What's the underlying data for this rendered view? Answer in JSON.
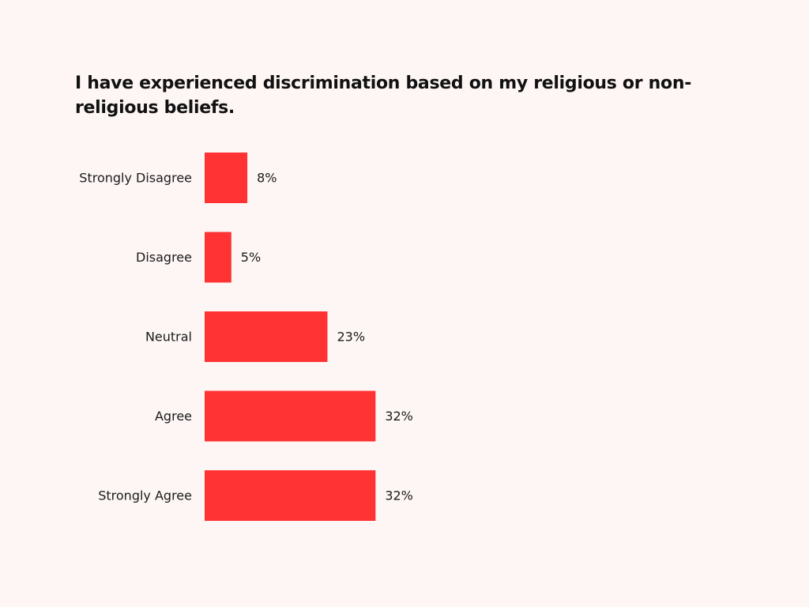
{
  "chart_data": {
    "type": "bar",
    "orientation": "horizontal",
    "title": "I have experienced discrimination based on my religious or non-religious beliefs.",
    "categories": [
      "Strongly Disagree",
      "Disagree",
      "Neutral",
      "Agree",
      "Strongly Agree"
    ],
    "values": [
      8,
      5,
      23,
      32,
      32
    ],
    "value_labels": [
      "8%",
      "5%",
      "23%",
      "32%",
      "32%"
    ],
    "unit": "%",
    "bar_color": "#ff3333",
    "grid": false,
    "legend": "none",
    "xlim": [
      0,
      100
    ]
  }
}
